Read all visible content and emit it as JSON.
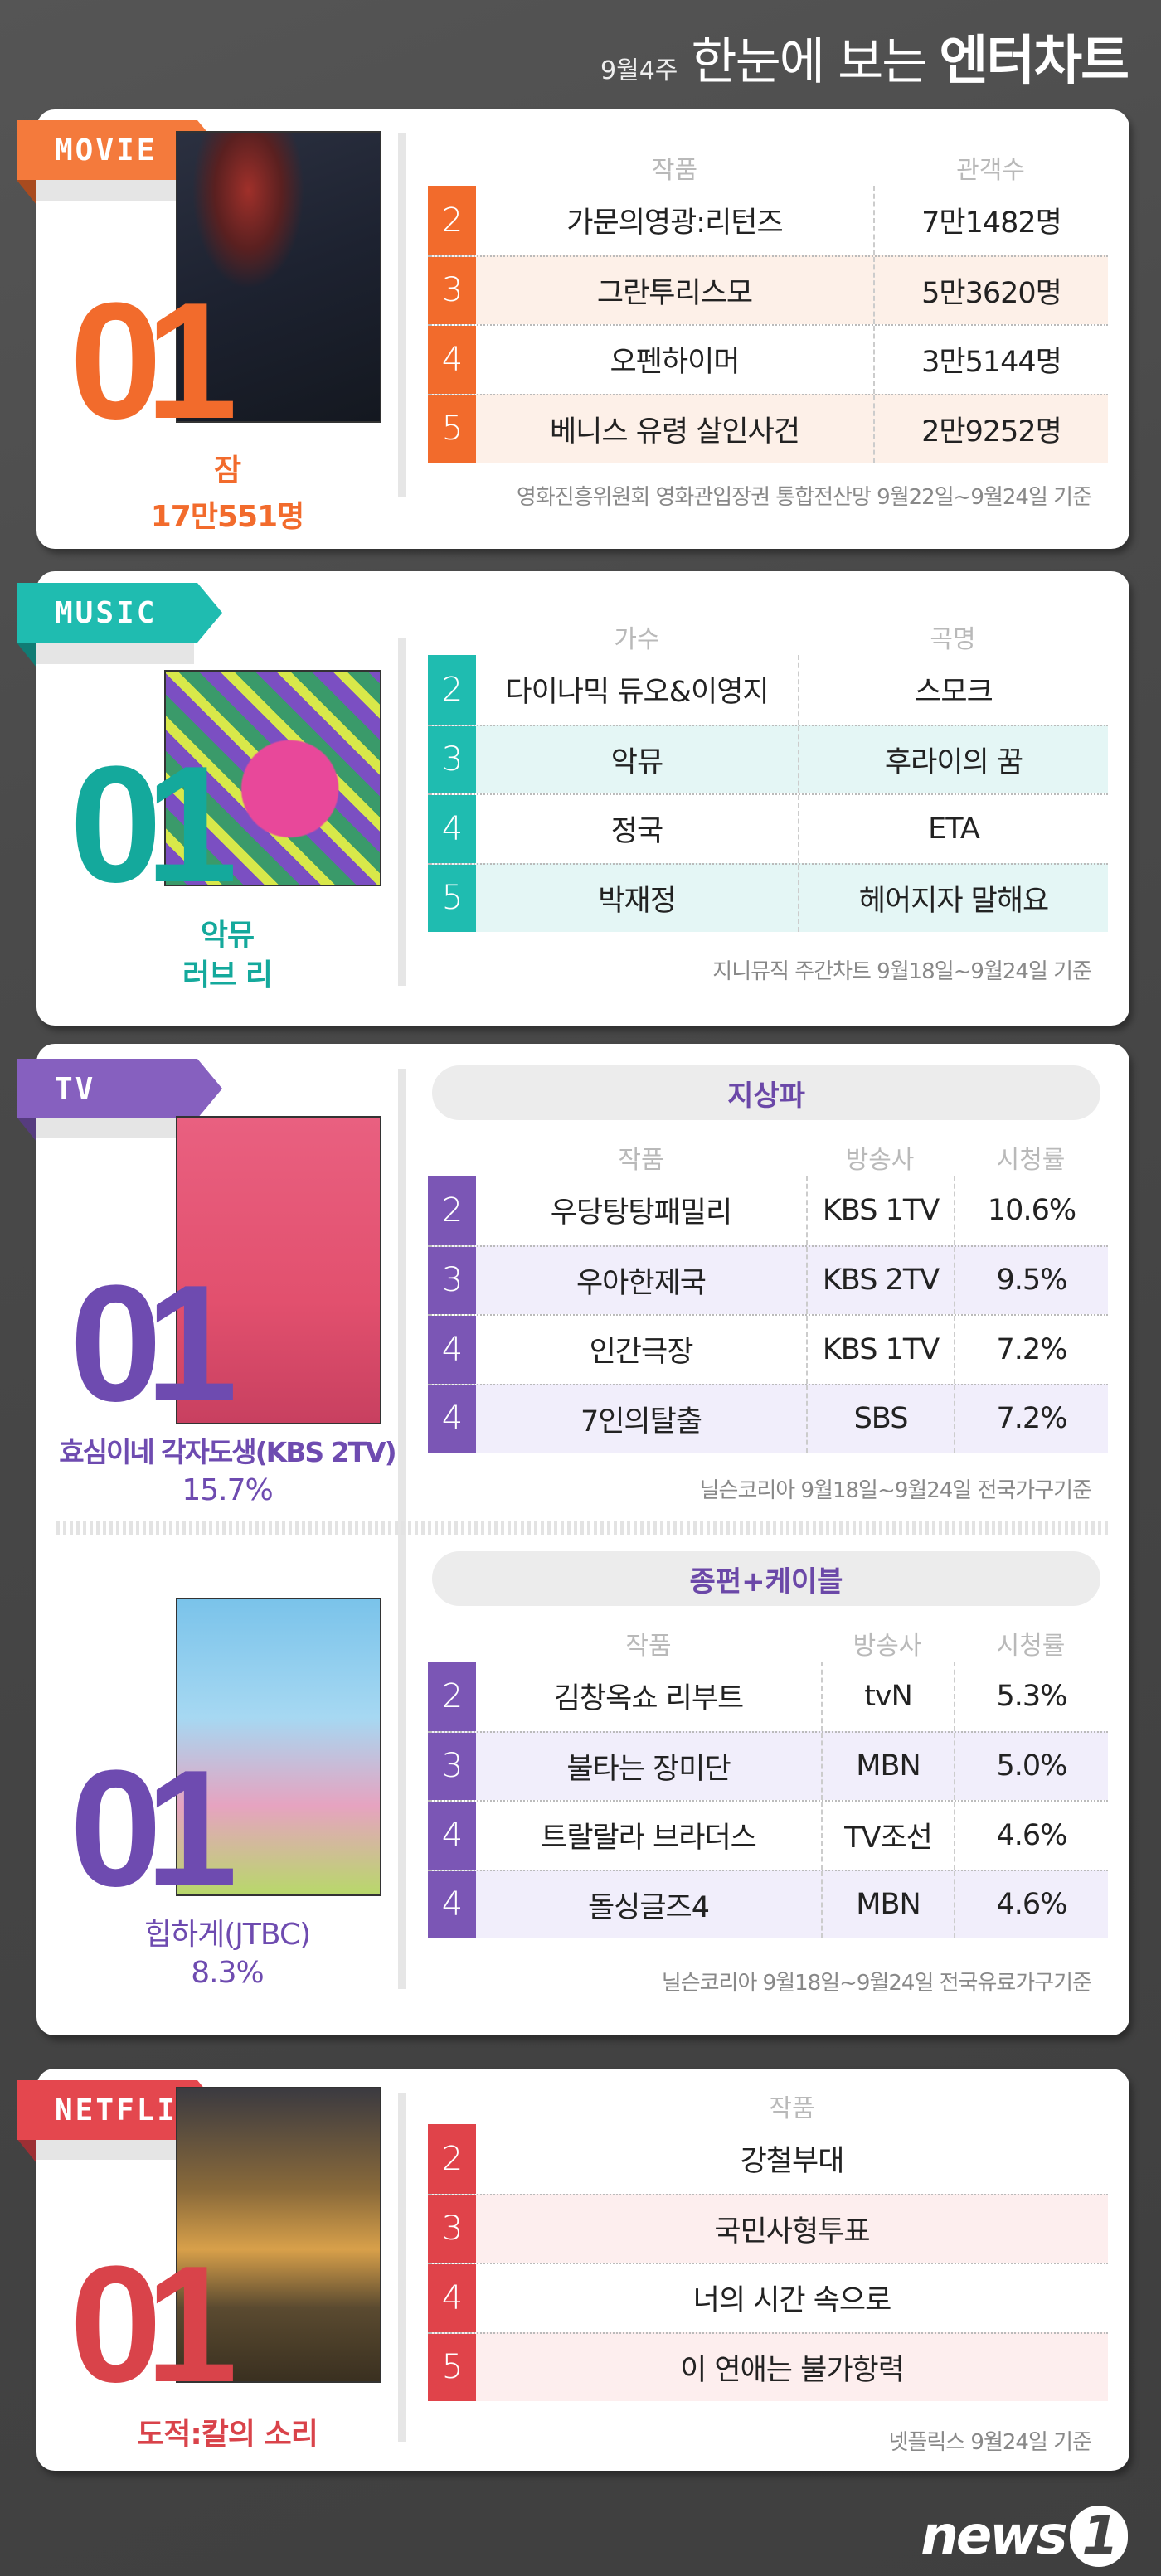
{
  "header": {
    "week": "9월4주",
    "title_light": "한눈에 보는",
    "title_bold": "엔터차트"
  },
  "colors": {
    "movie": "#f26b2c",
    "music": "#17b1a5",
    "tv": "#7b56b5",
    "netflix": "#e0434a"
  },
  "movie": {
    "tag": "MOVIE",
    "rank": "01",
    "top_title": "잠",
    "top_value": "17만551명",
    "table": {
      "headers": [
        "작품",
        "관객수"
      ],
      "rows": [
        {
          "rank": "2",
          "cells": [
            "가문의영광:리턴즈",
            "7만1482명"
          ]
        },
        {
          "rank": "3",
          "cells": [
            "그란투리스모",
            "5만3620명"
          ]
        },
        {
          "rank": "4",
          "cells": [
            "오펜하이머",
            "3만5144명"
          ]
        },
        {
          "rank": "5",
          "cells": [
            "베니스 유령 살인사건",
            "2만9252명"
          ]
        }
      ]
    },
    "source": "영화진흥위원회 영화관입장권 통합전산망 9월22일~9월24일 기준"
  },
  "music": {
    "tag": "MUSIC",
    "rank": "01",
    "top_title": "악뮤",
    "top_value": "러브 리",
    "table": {
      "headers": [
        "가수",
        "곡명"
      ],
      "rows": [
        {
          "rank": "2",
          "cells": [
            "다이나믹 듀오&이영지",
            "스모크"
          ]
        },
        {
          "rank": "3",
          "cells": [
            "악뮤",
            "후라이의 꿈"
          ]
        },
        {
          "rank": "4",
          "cells": [
            "정국",
            "ETA"
          ]
        },
        {
          "rank": "5",
          "cells": [
            "박재정",
            "헤어지자 말해요"
          ]
        }
      ]
    },
    "source": "지니뮤직 주간차트 9월18일~9월24일 기준"
  },
  "tv": {
    "tag": "TV",
    "terrestrial": {
      "section": "지상파",
      "rank": "01",
      "top_title": "효심이네 각자도생(KBS 2TV)",
      "top_value": "15.7%",
      "table": {
        "headers": [
          "작품",
          "방송사",
          "시청률"
        ],
        "rows": [
          {
            "rank": "2",
            "cells": [
              "우당탕탕패밀리",
              "KBS 1TV",
              "10.6%"
            ]
          },
          {
            "rank": "3",
            "cells": [
              "우아한제국",
              "KBS 2TV",
              "9.5%"
            ]
          },
          {
            "rank": "4",
            "cells": [
              "인간극장",
              "KBS 1TV",
              "7.2%"
            ]
          },
          {
            "rank": "4",
            "cells": [
              "7인의탈출",
              "SBS",
              "7.2%"
            ]
          }
        ]
      },
      "source": "닐슨코리아 9월18일~9월24일 전국가구기준"
    },
    "cable": {
      "section": "종편+케이블",
      "rank": "01",
      "top_title": "힙하게(JTBC)",
      "top_value": "8.3%",
      "table": {
        "headers": [
          "작품",
          "방송사",
          "시청률"
        ],
        "rows": [
          {
            "rank": "2",
            "cells": [
              "김창옥쇼 리부트",
              "tvN",
              "5.3%"
            ]
          },
          {
            "rank": "3",
            "cells": [
              "불타는 장미단",
              "MBN",
              "5.0%"
            ]
          },
          {
            "rank": "4",
            "cells": [
              "트랄랄라 브라더스",
              "TV조선",
              "4.6%"
            ]
          },
          {
            "rank": "4",
            "cells": [
              "돌싱글즈4",
              "MBN",
              "4.6%"
            ]
          }
        ]
      },
      "source": "닐슨코리아 9월18일~9월24일 전국유료가구기준"
    }
  },
  "netflix": {
    "tag": "NETFLIX",
    "rank": "01",
    "top_title": "도적:칼의 소리",
    "table": {
      "headers": [
        "작품"
      ],
      "rows": [
        {
          "rank": "2",
          "cells": [
            "강철부대"
          ]
        },
        {
          "rank": "3",
          "cells": [
            "국민사형투표"
          ]
        },
        {
          "rank": "4",
          "cells": [
            "너의 시간 속으로"
          ]
        },
        {
          "rank": "5",
          "cells": [
            "이 연애는 불가항력"
          ]
        }
      ]
    },
    "source": "넷플릭스 9월24일 기준"
  },
  "logo": {
    "text": "news",
    "num": "1"
  }
}
